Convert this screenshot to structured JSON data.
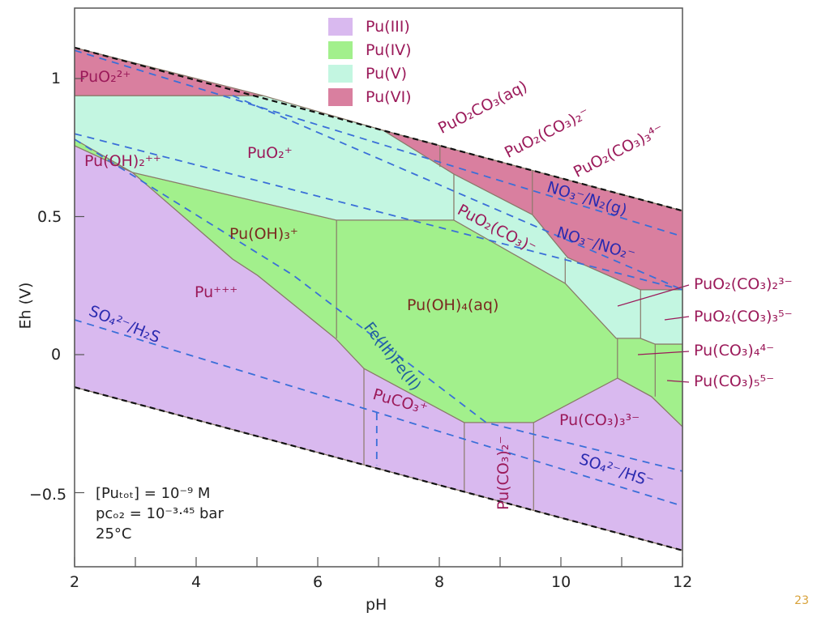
{
  "page_number": "23",
  "chart_data": {
    "type": "area",
    "title": "",
    "xlabel": "pH",
    "ylabel": "Eh (V)",
    "xlim": [
      2,
      12
    ],
    "ylim": [
      -0.77,
      1.255
    ],
    "x_ticks": [
      2,
      3,
      4,
      5,
      6,
      7,
      8,
      9,
      10,
      11,
      12
    ],
    "x_tick_labels": [
      "2",
      "4",
      "6",
      "8",
      "10",
      "12"
    ],
    "x_tick_label_values": [
      2,
      4,
      6,
      8,
      10,
      12
    ],
    "y_tick_values": [
      -0.5,
      0,
      0.5,
      1
    ],
    "y_tick_labels": [
      "−0.5",
      "0",
      "0.5",
      "1"
    ],
    "legend": {
      "placement": "top-center",
      "entries": [
        {
          "label": "Pu(III)",
          "color": "#d9b9ef"
        },
        {
          "label": "Pu(IV)",
          "color": "#a2f08c"
        },
        {
          "label": "Pu(V)",
          "color": "#c3f6e1"
        },
        {
          "label": "Pu(VI)",
          "color": "#d97f9f"
        }
      ]
    },
    "colors": {
      "III": "#d9b9ef",
      "IV": "#a2f08c",
      "V": "#c3f6e1",
      "VI": "#d97f9f",
      "boundary": "#8a7a6a",
      "redox_dash": "#3a6fd8",
      "water_dash": "#111111"
    },
    "water_lines": [
      {
        "name": "O2/H2O",
        "points": [
          [
            2,
            1.112
          ],
          [
            12,
            0.521
          ]
        ]
      },
      {
        "name": "H2O/H2",
        "points": [
          [
            2,
            -0.118
          ],
          [
            12,
            -0.709
          ]
        ]
      }
    ],
    "regions": [
      {
        "species": "Pu+++",
        "state": "III",
        "vertices": [
          [
            2,
            0.757
          ],
          [
            2.95,
            0.66
          ],
          [
            4.6,
            0.346
          ],
          [
            5.01,
            0.287
          ],
          [
            6.29,
            0.059
          ],
          [
            6.76,
            -0.05
          ],
          [
            8.41,
            -0.246
          ],
          [
            9.55,
            -0.246
          ],
          [
            10.93,
            -0.085
          ],
          [
            11.49,
            -0.152
          ],
          [
            12,
            -0.261
          ],
          [
            12,
            -0.709
          ],
          [
            2,
            -0.118
          ]
        ]
      },
      {
        "species": "Pu(IV)",
        "state": "IV",
        "vertices": [
          [
            2,
            0.78
          ],
          [
            2.95,
            0.66
          ],
          [
            6.31,
            0.487
          ],
          [
            8.24,
            0.487
          ],
          [
            10.07,
            0.258
          ],
          [
            10.91,
            0.059
          ],
          [
            11.31,
            0.059
          ],
          [
            11.55,
            0.038
          ],
          [
            12,
            0.038
          ],
          [
            12,
            -0.261
          ],
          [
            11.49,
            -0.152
          ],
          [
            10.93,
            -0.085
          ],
          [
            9.55,
            -0.246
          ],
          [
            8.41,
            -0.246
          ],
          [
            6.76,
            -0.05
          ],
          [
            6.29,
            0.059
          ],
          [
            5.01,
            0.287
          ],
          [
            4.6,
            0.346
          ],
          [
            2.95,
            0.66
          ],
          [
            2,
            0.757
          ]
        ]
      },
      {
        "species": "PuO2+",
        "state": "V",
        "vertices": [
          [
            2,
            0.938
          ],
          [
            5.1,
            0.938
          ],
          [
            7.08,
            0.812
          ],
          [
            8.24,
            0.654
          ],
          [
            8.24,
            0.487
          ],
          [
            6.31,
            0.487
          ],
          [
            2.95,
            0.66
          ],
          [
            2,
            0.78
          ]
        ]
      },
      {
        "species": "PuO2(CO3)-",
        "state": "V",
        "vertices": [
          [
            8.24,
            0.654
          ],
          [
            9.53,
            0.507
          ],
          [
            10.11,
            0.352
          ],
          [
            11.31,
            0.235
          ],
          [
            12,
            0.235
          ],
          [
            12,
            0.038
          ],
          [
            11.55,
            0.038
          ],
          [
            11.31,
            0.059
          ],
          [
            10.91,
            0.059
          ],
          [
            10.07,
            0.258
          ],
          [
            8.24,
            0.487
          ]
        ]
      },
      {
        "species": "PuO2 2+",
        "state": "VI",
        "vertices": [
          [
            2,
            1.112
          ],
          [
            5.1,
            0.938
          ],
          [
            2,
            0.938
          ]
        ]
      },
      {
        "species": "PuO2 carbonates",
        "state": "VI",
        "vertices": [
          [
            7.08,
            0.812
          ],
          [
            12,
            0.521
          ],
          [
            12,
            0.235
          ],
          [
            11.31,
            0.235
          ],
          [
            10.11,
            0.352
          ],
          [
            9.53,
            0.507
          ],
          [
            8.24,
            0.654
          ]
        ]
      }
    ],
    "dividers": [
      [
        [
          8.01,
          0.757
        ],
        [
          8.01,
          0.68
        ]
      ],
      [
        [
          9.53,
          0.667
        ],
        [
          9.53,
          0.507
        ]
      ],
      [
        [
          10.07,
          0.352
        ],
        [
          10.07,
          0.258
        ]
      ],
      [
        [
          11.31,
          0.235
        ],
        [
          11.31,
          0.059
        ]
      ],
      [
        [
          6.31,
          0.487
        ],
        [
          6.31,
          0.059
        ]
      ],
      [
        [
          10.93,
          0.059
        ],
        [
          10.93,
          -0.085
        ]
      ],
      [
        [
          11.55,
          0.038
        ],
        [
          11.55,
          -0.152
        ]
      ],
      [
        [
          6.76,
          -0.05
        ],
        [
          6.76,
          -0.4
        ]
      ],
      [
        [
          8.41,
          -0.246
        ],
        [
          8.41,
          -0.497
        ]
      ],
      [
        [
          9.55,
          -0.246
        ],
        [
          9.55,
          -0.564
        ]
      ]
    ],
    "redox_lines": [
      {
        "name": "NO3-/N2(g)",
        "points": [
          [
            2,
            1.102
          ],
          [
            12,
            0.428
          ]
        ]
      },
      {
        "name": "NO3-/NO2-",
        "points": [
          [
            4.6,
            0.938
          ],
          [
            12,
            0.235
          ]
        ]
      },
      {
        "name": "upper couple",
        "points": [
          [
            2,
            0.8
          ],
          [
            12,
            0.235
          ]
        ]
      },
      {
        "name": "Fe(III)/Fe(II)",
        "points": [
          [
            2,
            0.78
          ],
          [
            5.6,
            0.287
          ],
          [
            8.77,
            -0.246
          ],
          [
            12,
            -0.422
          ]
        ]
      },
      {
        "name": "SO4 2-/H2S, SO4 2-/HS-",
        "points": [
          [
            2,
            0.126
          ],
          [
            12,
            -0.548
          ]
        ]
      },
      {
        "name": "H2S/HS- boundary",
        "points": [
          [
            6.97,
            -0.211
          ],
          [
            6.97,
            -0.4
          ]
        ]
      }
    ],
    "labels": [
      "PuO₂²⁺",
      "PuO₂⁺",
      "Pu(OH)₂⁺⁺",
      "Pu(OH)₃⁺",
      "Pu⁺⁺⁺",
      "Pu(OH)₄(aq)",
      "SO₄²⁻/H₂S",
      "Fe(III)Fe(II)",
      "PuCO₃⁺",
      "Pu(CO₃)₂⁻",
      "Pu(CO₃)₃³⁻",
      "SO₄²⁻/HS⁻",
      "PuO₂CO₃(aq)",
      "PuO₂(CO₃)₂⁻",
      "PuO₂(CO₃)₃⁴⁻",
      "NO₃⁻/N₂(g)",
      "NO₃⁻/NO₂⁻",
      "PuO₂(CO₃)⁻",
      "PuO₂(CO₃)₂³⁻",
      "PuO₂(CO₃)₃⁵⁻",
      "Pu(CO₃)₄⁴⁻",
      "Pu(CO₃)₅⁵⁻"
    ],
    "conditions": [
      "[Puₜₒₜ] = 10⁻⁹ M",
      "pᴄₒ₂ = 10⁻³·⁴⁵ bar",
      "25°C"
    ]
  }
}
